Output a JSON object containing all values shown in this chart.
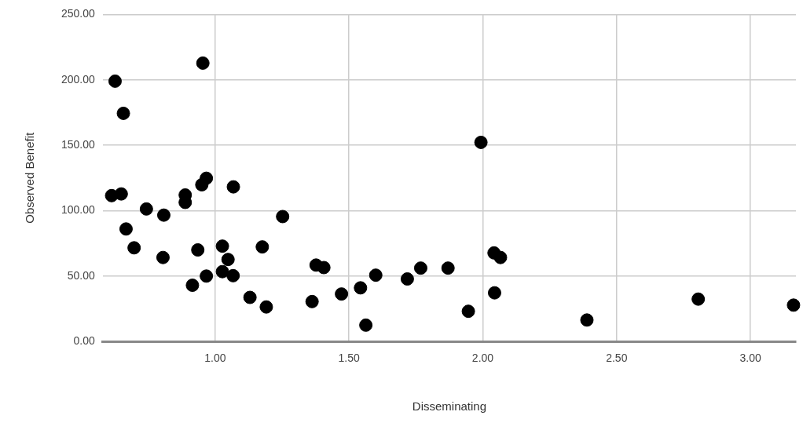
{
  "chart_data": {
    "type": "scatter",
    "xlabel": "Disseminating",
    "ylabel": "Observed Benefit",
    "x": [
      0.954,
      0.626,
      0.657,
      0.613,
      0.649,
      0.743,
      0.808,
      0.667,
      0.697,
      0.805,
      0.888,
      0.888,
      0.95,
      0.967,
      1.068,
      1.252,
      0.935,
      1.027,
      1.048,
      1.176,
      0.915,
      0.967,
      1.027,
      1.067,
      1.13,
      1.191,
      1.362,
      1.472,
      1.377,
      1.406,
      1.993,
      1.6,
      1.543,
      1.563,
      1.718,
      1.768,
      1.87,
      1.946,
      2.042,
      2.066,
      2.044,
      2.389,
      2.805,
      3.161
    ],
    "series": [
      {
        "color": "#000000",
        "values": [
          212.8,
          199,
          174.4,
          111.5,
          112.8,
          101.3,
          96.6,
          86,
          71.6,
          64.2,
          112,
          106.3,
          119.8,
          124.8,
          118.2,
          95.5,
          70,
          72.9,
          62.7,
          72.3,
          43,
          50,
          53.4,
          50.3,
          33.7,
          26.4,
          30.5,
          36.3,
          58.4,
          56.5,
          152.2,
          50.7,
          41,
          12.5,
          47.8,
          56.1,
          56.1,
          23.1,
          67.7,
          64.2,
          37.2,
          16.4,
          32.4,
          27.8
        ]
      }
    ],
    "xlim": [
      0.58,
      3.17
    ],
    "ylim": [
      0,
      250
    ],
    "xticks": [
      {
        "value": 1,
        "label": "1.00"
      },
      {
        "value": 1.5,
        "label": "1.50"
      },
      {
        "value": 2,
        "label": "2.00"
      },
      {
        "value": 2.5,
        "label": "2.50"
      },
      {
        "value": 3,
        "label": "3.00"
      }
    ],
    "yticks": [
      {
        "value": 0,
        "label": "0.00"
      },
      {
        "value": 50,
        "label": "50.00"
      },
      {
        "value": 100,
        "label": "100.00"
      },
      {
        "value": 150,
        "label": "150.00"
      },
      {
        "value": 200,
        "label": "200.00"
      },
      {
        "value": 250,
        "label": "250.00"
      }
    ],
    "grid": true,
    "legend": false,
    "marker": "circle"
  }
}
